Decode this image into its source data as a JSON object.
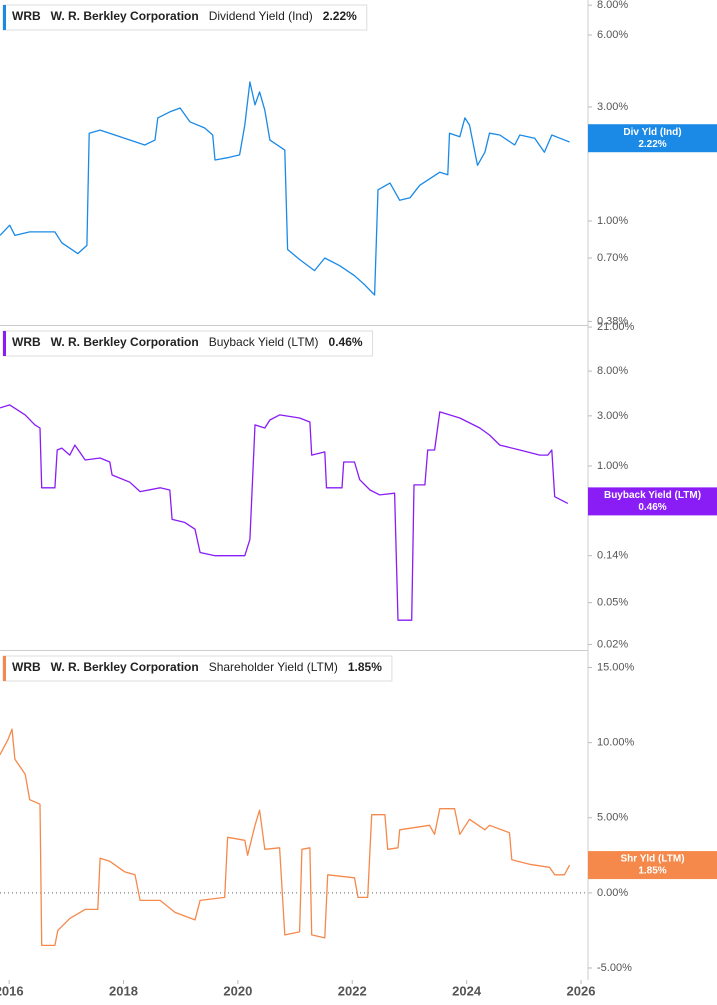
{
  "chart_data": [
    {
      "type": "line",
      "ticker": "WRB",
      "company": "W. R. Berkley Corporation",
      "log_scale": true,
      "xlim": [
        2015.84,
        2026.07
      ],
      "ylim": [
        0.367,
        8.41
      ],
      "yticks": [
        {
          "value": 0.38,
          "label": "0.38%"
        },
        {
          "value": 0.7,
          "label": "0.70%"
        },
        {
          "value": 1,
          "label": "1.00%"
        },
        {
          "value": 3,
          "label": "3.00%"
        },
        {
          "value": 6,
          "label": "6.00%"
        },
        {
          "value": 8,
          "label": "8.00%"
        }
      ],
      "x": [
        2015.84,
        2016.01,
        2016.1,
        2016.36,
        2016.8,
        2016.92,
        2017.2,
        2017.36,
        2017.4,
        2017.59,
        2017.94,
        2018.37,
        2018.55,
        2018.6,
        2018.81,
        2018.99,
        2019.16,
        2019.42,
        2019.56,
        2019.6,
        2019.82,
        2020.03,
        2020.12,
        2020.21,
        2020.3,
        2020.38,
        2020.47,
        2020.56,
        2020.82,
        2020.87,
        2021.08,
        2021.34,
        2021.52,
        2021.78,
        2022.04,
        2022.22,
        2022.39,
        2022.45,
        2022.66,
        2022.83,
        2023.01,
        2023.18,
        2023.53,
        2023.67,
        2023.7,
        2023.88,
        2023.97,
        2024.05,
        2024.19,
        2024.32,
        2024.4,
        2024.58,
        2024.84,
        2024.93,
        2025.19,
        2025.36,
        2025.49,
        2025.63,
        2025.8
      ],
      "series": [
        {
          "name": "Dividend Yield (Ind)",
          "color": "#1a8ae6",
          "values": [
            0.87,
            0.96,
            0.87,
            0.9,
            0.9,
            0.81,
            0.73,
            0.79,
            2.33,
            2.4,
            2.25,
            2.08,
            2.18,
            2.7,
            2.86,
            2.97,
            2.6,
            2.45,
            2.29,
            1.8,
            1.84,
            1.89,
            2.52,
            3.82,
            3.06,
            3.47,
            2.91,
            2.18,
            1.98,
            0.76,
            0.69,
            0.62,
            0.7,
            0.65,
            0.59,
            0.54,
            0.49,
            1.35,
            1.44,
            1.22,
            1.25,
            1.41,
            1.6,
            1.56,
            2.33,
            2.25,
            2.7,
            2.52,
            1.71,
            1.94,
            2.33,
            2.29,
            2.08,
            2.29,
            2.22,
            1.94,
            2.29,
            2.22,
            2.14
          ]
        }
      ],
      "current": {
        "value": 2.22,
        "label": "2.22%"
      },
      "tag": "Div Yld (Ind)"
    },
    {
      "type": "line",
      "ticker": "WRB",
      "company": "W. R. Berkley Corporation",
      "log_scale": true,
      "xlim": [
        2015.84,
        2026.07
      ],
      "ylim": [
        0.0177,
        21.5
      ],
      "yticks": [
        {
          "value": 0.02,
          "label": "0.02%"
        },
        {
          "value": 0.05,
          "label": "0.05%"
        },
        {
          "value": 0.14,
          "label": "0.14%"
        },
        {
          "value": 1,
          "label": "1.00%"
        },
        {
          "value": 3,
          "label": "3.00%"
        },
        {
          "value": 8,
          "label": "8.00%"
        },
        {
          "value": 21,
          "label": "21.00%"
        }
      ],
      "x": [
        2015.84,
        2016.01,
        2016.28,
        2016.45,
        2016.54,
        2016.57,
        2016.8,
        2016.84,
        2016.92,
        2017.06,
        2017.15,
        2017.33,
        2017.59,
        2017.76,
        2017.8,
        2018.11,
        2018.29,
        2018.64,
        2018.81,
        2018.85,
        2019.07,
        2019.25,
        2019.34,
        2019.6,
        2019.86,
        2020.12,
        2020.21,
        2020.3,
        2020.47,
        2020.56,
        2020.73,
        2021.08,
        2021.26,
        2021.29,
        2021.52,
        2021.55,
        2021.82,
        2021.85,
        2022.04,
        2022.13,
        2022.31,
        2022.48,
        2022.74,
        2022.8,
        2023.04,
        2023.08,
        2023.27,
        2023.32,
        2023.44,
        2023.53,
        2023.88,
        2024.23,
        2024.4,
        2024.58,
        2024.93,
        2025.28,
        2025.42,
        2025.49,
        2025.54,
        2025.77
      ],
      "series": [
        {
          "name": "Buyback Yield (LTM)",
          "color": "#8a1cf5",
          "values": [
            3.57,
            3.81,
            3.06,
            2.46,
            2.3,
            0.62,
            0.62,
            1.42,
            1.48,
            1.27,
            1.58,
            1.14,
            1.19,
            1.09,
            0.82,
            0.7,
            0.57,
            0.62,
            0.59,
            0.31,
            0.29,
            0.25,
            0.15,
            0.14,
            0.14,
            0.14,
            0.2,
            2.46,
            2.3,
            2.74,
            3.06,
            2.86,
            2.62,
            1.27,
            1.36,
            0.62,
            0.62,
            1.09,
            1.09,
            0.74,
            0.59,
            0.53,
            0.55,
            0.034,
            0.034,
            0.66,
            0.66,
            1.42,
            1.42,
            3.27,
            2.86,
            2.3,
            1.97,
            1.58,
            1.42,
            1.27,
            1.27,
            1.42,
            0.51,
            0.44
          ]
        }
      ],
      "current": {
        "value": 0.46,
        "label": "0.46%"
      },
      "tag": "Buyback Yield (LTM)"
    },
    {
      "type": "line",
      "ticker": "WRB",
      "company": "W. R. Berkley Corporation",
      "log_scale": false,
      "zero_line": true,
      "xlim": [
        2015.84,
        2026.07
      ],
      "ylim": [
        -5.8,
        16.1
      ],
      "xticks": [
        2016,
        2018,
        2020,
        2022,
        2024,
        2026
      ],
      "yticks": [
        {
          "value": -5,
          "label": "-5.00%"
        },
        {
          "value": 0,
          "label": "0.00%"
        },
        {
          "value": 5,
          "label": "5.00%"
        },
        {
          "value": 10,
          "label": "10.00%"
        },
        {
          "value": 15,
          "label": "15.00%"
        }
      ],
      "x": [
        2015.84,
        2015.98,
        2016.05,
        2016.1,
        2016.28,
        2016.36,
        2016.54,
        2016.57,
        2016.8,
        2016.85,
        2017.06,
        2017.33,
        2017.55,
        2017.59,
        2017.76,
        2018.02,
        2018.2,
        2018.29,
        2018.64,
        2018.9,
        2019.25,
        2019.34,
        2019.77,
        2019.82,
        2020.12,
        2020.17,
        2020.3,
        2020.38,
        2020.47,
        2020.73,
        2020.82,
        2021.08,
        2021.12,
        2021.26,
        2021.29,
        2021.52,
        2021.57,
        2022.04,
        2022.1,
        2022.27,
        2022.34,
        2022.57,
        2022.62,
        2022.8,
        2022.83,
        2023.35,
        2023.44,
        2023.53,
        2023.79,
        2023.88,
        2024.05,
        2024.32,
        2024.4,
        2024.75,
        2024.79,
        2025.1,
        2025.45,
        2025.54,
        2025.71,
        2025.8
      ],
      "series": [
        {
          "name": "Shareholder Yield (LTM)",
          "color": "#f5894b",
          "values": [
            9.2,
            10.2,
            10.9,
            8.9,
            7.9,
            6.2,
            5.9,
            -3.5,
            -3.5,
            -2.5,
            -1.7,
            -1.1,
            -1.1,
            2.3,
            2.1,
            1.4,
            1.2,
            -0.5,
            -0.5,
            -1.3,
            -1.8,
            -0.5,
            -0.3,
            3.7,
            3.5,
            2.5,
            4.5,
            5.5,
            2.9,
            3.0,
            -2.8,
            -2.6,
            2.9,
            3.0,
            -2.8,
            -3.0,
            1.2,
            1.0,
            -0.3,
            -0.3,
            5.2,
            5.2,
            2.9,
            3.0,
            4.2,
            4.5,
            3.9,
            5.6,
            5.6,
            3.9,
            4.9,
            4.2,
            4.5,
            4.0,
            2.2,
            1.9,
            1.7,
            1.2,
            1.2,
            1.85
          ]
        }
      ],
      "current": {
        "value": 1.85,
        "label": "1.85%"
      },
      "tag": "Shr Yld (LTM)"
    }
  ]
}
